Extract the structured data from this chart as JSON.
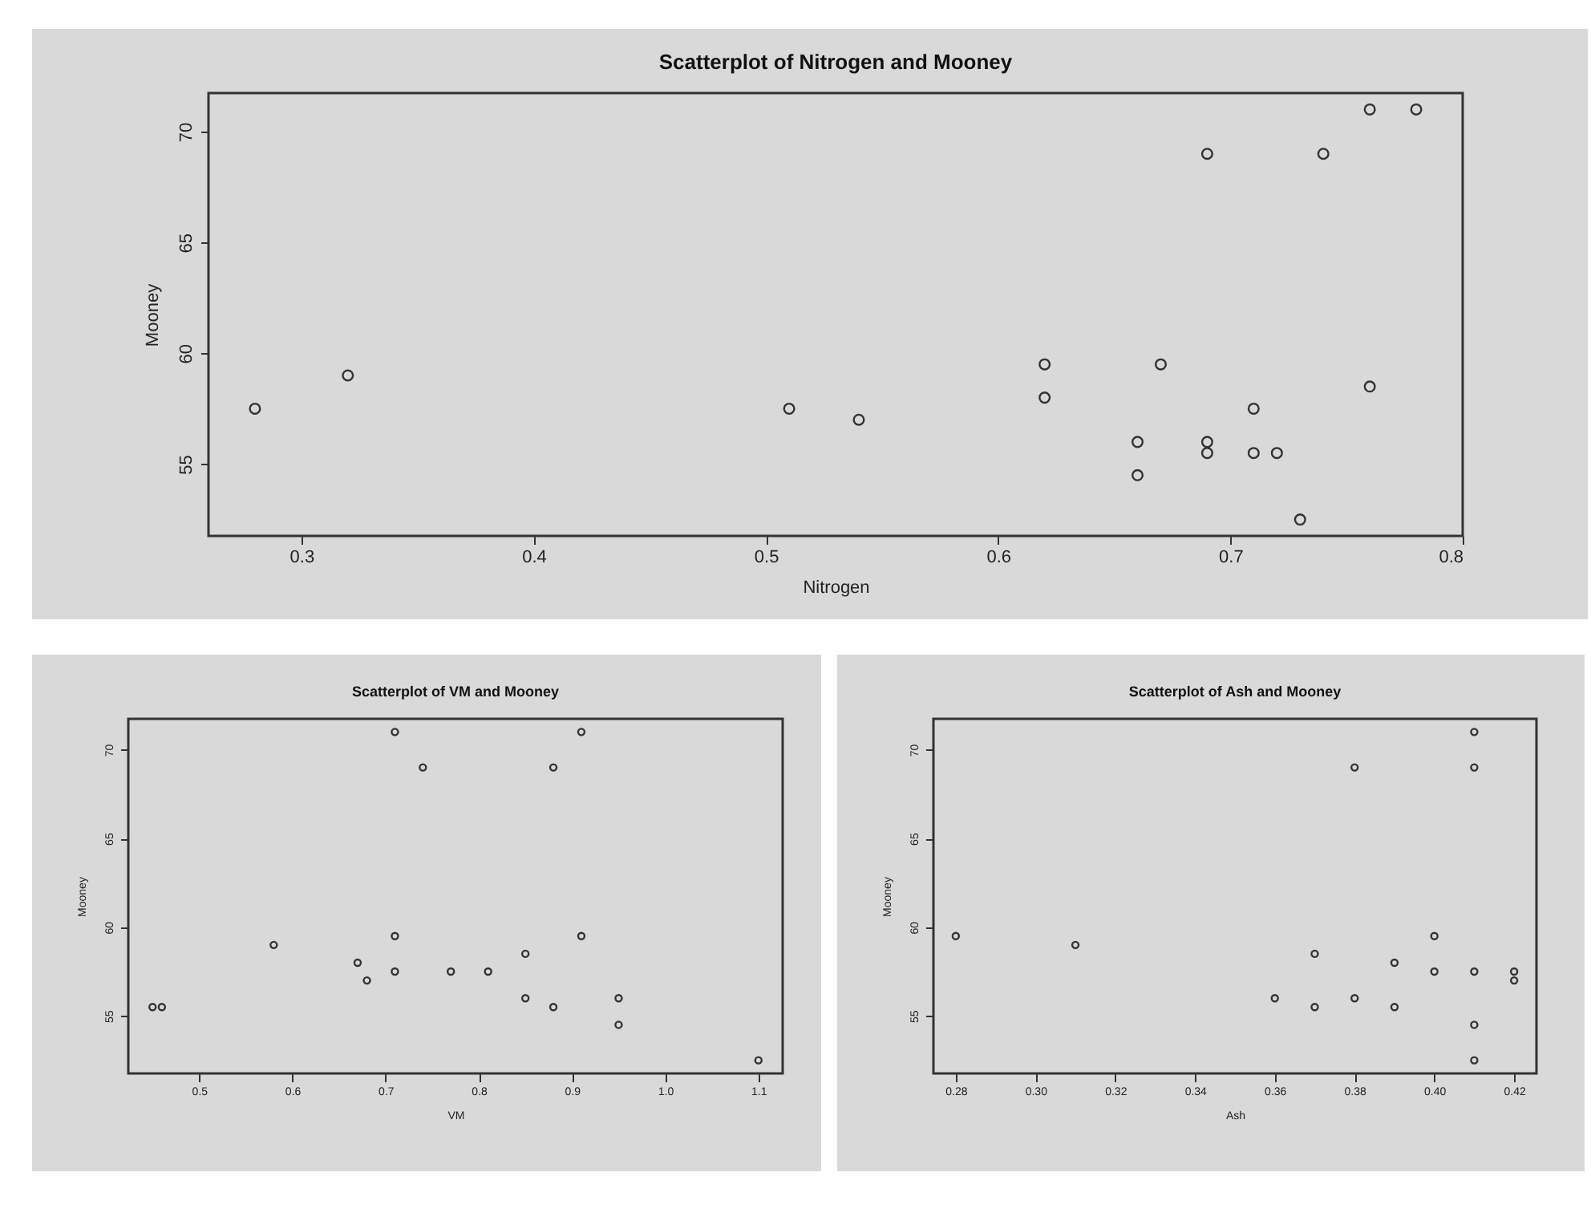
{
  "chart_data": [
    {
      "type": "scatter",
      "title": "Scatterplot of Nitrogen and Mooney",
      "xlabel": "Nitrogen",
      "ylabel": "Mooney",
      "color": "#333333",
      "marker": "circle",
      "grid": false,
      "x": [
        0.28,
        0.32,
        0.51,
        0.54,
        0.62,
        0.62,
        0.66,
        0.66,
        0.67,
        0.69,
        0.69,
        0.69,
        0.71,
        0.71,
        0.72,
        0.73,
        0.74,
        0.76,
        0.76,
        0.78
      ],
      "values": [
        57.5,
        59,
        57.5,
        57,
        59.5,
        58,
        56,
        54.5,
        59.5,
        69,
        56,
        55.5,
        57.5,
        55.5,
        55.5,
        52.5,
        69,
        71,
        58.5,
        71
      ],
      "xlim": [
        0.26,
        0.8
      ],
      "ylim": [
        51.76,
        71.74
      ],
      "xticks": [
        0.3,
        0.4,
        0.5,
        0.6,
        0.7,
        0.8
      ],
      "yticks": [
        55,
        60,
        65,
        70
      ]
    },
    {
      "type": "scatter",
      "title": "Scatterplot of VM and Mooney",
      "xlabel": "VM",
      "ylabel": "Mooney",
      "color": "#333333",
      "marker": "circle",
      "grid": false,
      "x": [
        0.45,
        0.46,
        0.58,
        0.67,
        0.68,
        0.71,
        0.71,
        0.71,
        0.74,
        0.77,
        0.81,
        0.85,
        0.85,
        0.88,
        0.88,
        0.91,
        0.91,
        0.95,
        0.95,
        1.1
      ],
      "values": [
        55.5,
        55.5,
        59,
        58,
        57,
        71,
        59.5,
        57.5,
        69,
        57.5,
        57.5,
        58.5,
        56,
        69,
        55.5,
        71,
        59.5,
        56,
        54.5,
        52.5
      ],
      "xlim": [
        0.424,
        1.126
      ],
      "ylim": [
        51.76,
        71.74
      ],
      "xticks": [
        {
          "value": 0.5,
          "label": "0.5"
        },
        {
          "value": 0.6,
          "label": "0.6"
        },
        {
          "value": 0.7,
          "label": "0.7"
        },
        {
          "value": 0.8,
          "label": "0.8"
        },
        {
          "value": 0.9,
          "label": "0.9"
        },
        {
          "value": 1.0,
          "label": "1.0"
        },
        {
          "value": 1.1,
          "label": "1.1"
        }
      ],
      "yticks": [
        55,
        60,
        65,
        70
      ]
    },
    {
      "type": "scatter",
      "title": "Scatterplot of Ash and Mooney",
      "xlabel": "Ash",
      "ylabel": "Mooney",
      "color": "#333333",
      "marker": "circle",
      "grid": false,
      "x": [
        0.28,
        0.31,
        0.36,
        0.37,
        0.37,
        0.38,
        0.38,
        0.39,
        0.39,
        0.4,
        0.4,
        0.41,
        0.41,
        0.41,
        0.41,
        0.41,
        0.42,
        0.42
      ],
      "values": [
        59.5,
        59,
        56,
        58.5,
        55.5,
        69,
        56,
        58,
        55.5,
        59.5,
        57.5,
        71,
        69,
        57.5,
        54.5,
        52.5,
        57.5,
        57
      ],
      "xlim": [
        0.2744,
        0.4256
      ],
      "ylim": [
        51.76,
        71.74
      ],
      "xticks": [
        {
          "value": 0.28,
          "label": "0.28"
        },
        {
          "value": 0.3,
          "label": "0.30"
        },
        {
          "value": 0.32,
          "label": "0.32"
        },
        {
          "value": 0.34,
          "label": "0.34"
        },
        {
          "value": 0.36,
          "label": "0.36"
        },
        {
          "value": 0.38,
          "label": "0.38"
        },
        {
          "value": 0.4,
          "label": "0.40"
        },
        {
          "value": 0.42,
          "label": "0.42"
        }
      ],
      "yticks": [
        55,
        60,
        65,
        70
      ]
    }
  ]
}
